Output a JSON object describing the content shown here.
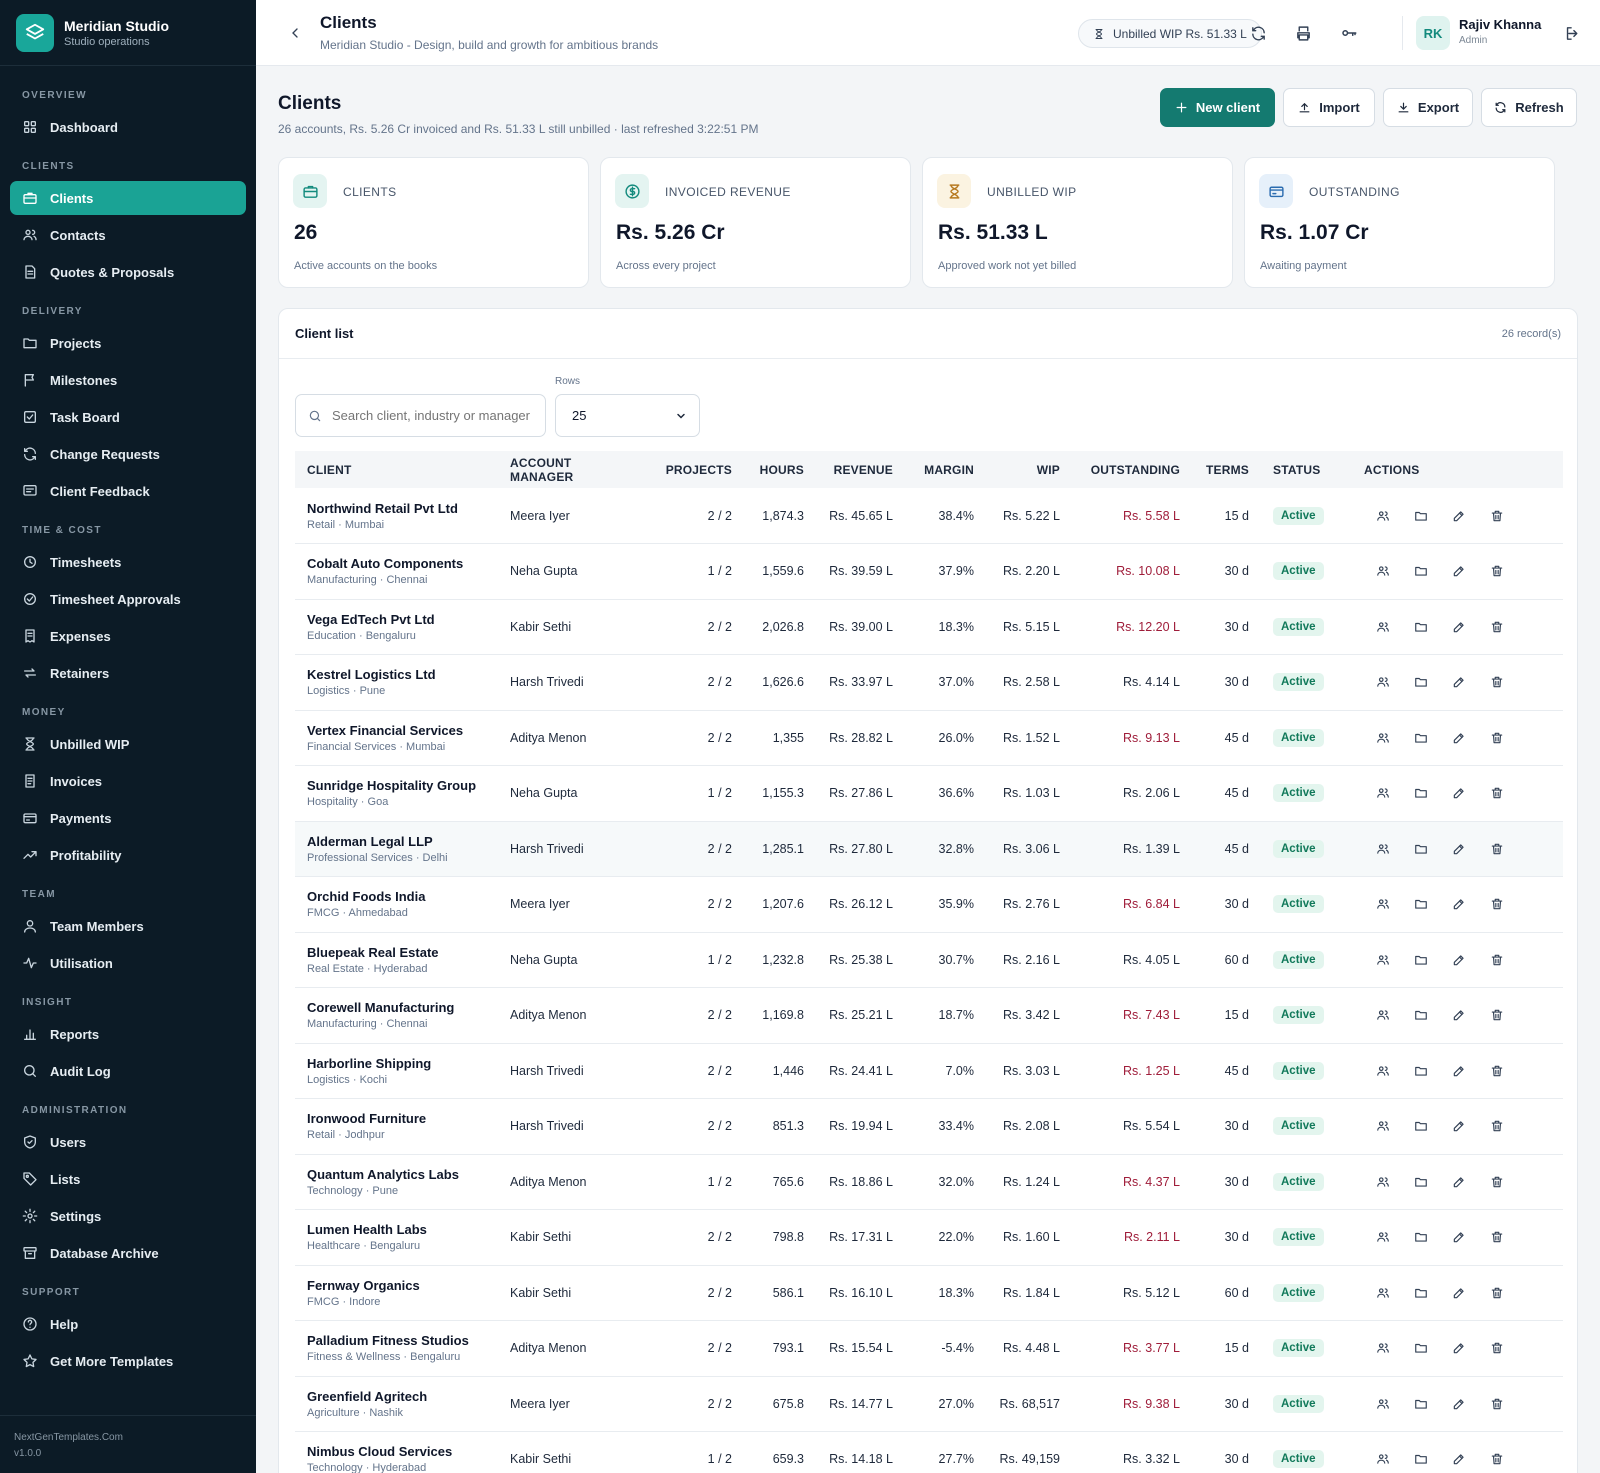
{
  "brand": {
    "name": "Meridian Studio",
    "subtitle": "Studio operations"
  },
  "sidebar": {
    "sections": [
      {
        "title": "OVERVIEW",
        "items": [
          {
            "label": "Dashboard",
            "icon": "dashboard-icon"
          }
        ]
      },
      {
        "title": "CLIENTS",
        "items": [
          {
            "label": "Clients",
            "icon": "briefcase-icon",
            "active": true
          },
          {
            "label": "Contacts",
            "icon": "contacts-icon"
          },
          {
            "label": "Quotes & Proposals",
            "icon": "document-icon"
          }
        ]
      },
      {
        "title": "DELIVERY",
        "items": [
          {
            "label": "Projects",
            "icon": "folder-icon"
          },
          {
            "label": "Milestones",
            "icon": "flag-icon"
          },
          {
            "label": "Task Board",
            "icon": "checkbox-icon"
          },
          {
            "label": "Change Requests",
            "icon": "refresh-icon"
          },
          {
            "label": "Client Feedback",
            "icon": "message-icon"
          }
        ]
      },
      {
        "title": "TIME & COST",
        "items": [
          {
            "label": "Timesheets",
            "icon": "clock-icon"
          },
          {
            "label": "Timesheet Approvals",
            "icon": "check-circle-icon"
          },
          {
            "label": "Expenses",
            "icon": "receipt-icon"
          },
          {
            "label": "Retainers",
            "icon": "repeat-icon"
          }
        ]
      },
      {
        "title": "MONEY",
        "items": [
          {
            "label": "Unbilled WIP",
            "icon": "hourglass-icon"
          },
          {
            "label": "Invoices",
            "icon": "invoice-icon"
          },
          {
            "label": "Payments",
            "icon": "card-icon"
          },
          {
            "label": "Profitability",
            "icon": "trend-icon"
          }
        ]
      },
      {
        "title": "TEAM",
        "items": [
          {
            "label": "Team Members",
            "icon": "user-icon"
          },
          {
            "label": "Utilisation",
            "icon": "pulse-icon"
          }
        ]
      },
      {
        "title": "INSIGHT",
        "items": [
          {
            "label": "Reports",
            "icon": "bar-chart-icon"
          },
          {
            "label": "Audit Log",
            "icon": "search-icon"
          }
        ]
      },
      {
        "title": "ADMINISTRATION",
        "items": [
          {
            "label": "Users",
            "icon": "shield-icon"
          },
          {
            "label": "Lists",
            "icon": "tag-icon"
          },
          {
            "label": "Settings",
            "icon": "gear-icon"
          },
          {
            "label": "Database Archive",
            "icon": "archive-icon"
          }
        ]
      },
      {
        "title": "SUPPORT",
        "items": [
          {
            "label": "Help",
            "icon": "help-icon"
          },
          {
            "label": "Get More Templates",
            "icon": "star-icon"
          }
        ]
      }
    ],
    "footer": {
      "site": "NextGenTemplates.Com",
      "version": "v1.0.0"
    }
  },
  "topbar": {
    "title": "Clients",
    "subtitle": "Meridian Studio - Design, build and growth for ambitious brands",
    "wip_pill": "Unbilled WIP Rs. 51.33 L",
    "user": {
      "initials": "RK",
      "name": "Rajiv Khanna",
      "role": "Admin"
    }
  },
  "page": {
    "title": "Clients",
    "subtitle": "26 accounts, Rs. 5.26 Cr invoiced and Rs. 51.33 L still unbilled · last refreshed 3:22:51 PM",
    "buttons": {
      "new_client": "New client",
      "import": "Import",
      "export": "Export",
      "refresh": "Refresh"
    }
  },
  "stats": [
    {
      "label": "CLIENTS",
      "value": "26",
      "note": "Active accounts on the books",
      "icon": "briefcase-icon",
      "color": "#138a7d",
      "bg": "#e4f4f1"
    },
    {
      "label": "INVOICED REVENUE",
      "value": "Rs. 5.26 Cr",
      "note": "Across every project",
      "icon": "coin-icon",
      "color": "#138a7d",
      "bg": "#e4f4f1"
    },
    {
      "label": "UNBILLED WIP",
      "value": "Rs. 51.33 L",
      "note": "Approved work not yet billed",
      "icon": "hourglass-icon",
      "color": "#b7791f",
      "bg": "#fbf3e1"
    },
    {
      "label": "OUTSTANDING",
      "value": "Rs. 1.07 Cr",
      "note": "Awaiting payment",
      "icon": "card-icon",
      "color": "#2b6cb0",
      "bg": "#e6f0fa"
    }
  ],
  "list": {
    "title": "Client list",
    "count": "26 record(s)",
    "search_placeholder": "Search client, industry or manager",
    "rows_label": "Rows",
    "rows_value": "25",
    "columns": [
      "CLIENT",
      "ACCOUNT MANAGER",
      "PROJECTS",
      "HOURS",
      "REVENUE",
      "MARGIN",
      "WIP",
      "OUTSTANDING",
      "TERMS",
      "STATUS",
      "ACTIONS"
    ],
    "rows": [
      {
        "name": "Northwind Retail Pvt Ltd",
        "meta": "Retail · Mumbai",
        "manager": "Meera Iyer",
        "projects": "2 / 2",
        "hours": "1,874.3",
        "revenue": "Rs. 45.65 L",
        "margin": "38.4%",
        "wip": "Rs. 5.22 L",
        "outstanding": "Rs. 5.58 L",
        "overdue": true,
        "terms": "15 d",
        "status": "Active"
      },
      {
        "name": "Cobalt Auto Components",
        "meta": "Manufacturing · Chennai",
        "manager": "Neha Gupta",
        "projects": "1 / 2",
        "hours": "1,559.6",
        "revenue": "Rs. 39.59 L",
        "margin": "37.9%",
        "wip": "Rs. 2.20 L",
        "outstanding": "Rs. 10.08 L",
        "overdue": true,
        "terms": "30 d",
        "status": "Active"
      },
      {
        "name": "Vega EdTech Pvt Ltd",
        "meta": "Education · Bengaluru",
        "manager": "Kabir Sethi",
        "projects": "2 / 2",
        "hours": "2,026.8",
        "revenue": "Rs. 39.00 L",
        "margin": "18.3%",
        "wip": "Rs. 5.15 L",
        "outstanding": "Rs. 12.20 L",
        "overdue": true,
        "terms": "30 d",
        "status": "Active"
      },
      {
        "name": "Kestrel Logistics Ltd",
        "meta": "Logistics · Pune",
        "manager": "Harsh Trivedi",
        "projects": "2 / 2",
        "hours": "1,626.6",
        "revenue": "Rs. 33.97 L",
        "margin": "37.0%",
        "wip": "Rs. 2.58 L",
        "outstanding": "Rs. 4.14 L",
        "overdue": false,
        "terms": "30 d",
        "status": "Active"
      },
      {
        "name": "Vertex Financial Services",
        "meta": "Financial Services · Mumbai",
        "manager": "Aditya Menon",
        "projects": "2 / 2",
        "hours": "1,355",
        "revenue": "Rs. 28.82 L",
        "margin": "26.0%",
        "wip": "Rs. 1.52 L",
        "outstanding": "Rs. 9.13 L",
        "overdue": true,
        "terms": "45 d",
        "status": "Active"
      },
      {
        "name": "Sunridge Hospitality Group",
        "meta": "Hospitality · Goa",
        "manager": "Neha Gupta",
        "projects": "1 / 2",
        "hours": "1,155.3",
        "revenue": "Rs. 27.86 L",
        "margin": "36.6%",
        "wip": "Rs. 1.03 L",
        "outstanding": "Rs. 2.06 L",
        "overdue": false,
        "terms": "45 d",
        "status": "Active"
      },
      {
        "name": "Alderman Legal LLP",
        "meta": "Professional Services · Delhi",
        "manager": "Harsh Trivedi",
        "projects": "2 / 2",
        "hours": "1,285.1",
        "revenue": "Rs. 27.80 L",
        "margin": "32.8%",
        "wip": "Rs. 3.06 L",
        "outstanding": "Rs. 1.39 L",
        "overdue": false,
        "terms": "45 d",
        "status": "Active",
        "highlight": true
      },
      {
        "name": "Orchid Foods India",
        "meta": "FMCG · Ahmedabad",
        "manager": "Meera Iyer",
        "projects": "2 / 2",
        "hours": "1,207.6",
        "revenue": "Rs. 26.12 L",
        "margin": "35.9%",
        "wip": "Rs. 2.76 L",
        "outstanding": "Rs. 6.84 L",
        "overdue": true,
        "terms": "30 d",
        "status": "Active"
      },
      {
        "name": "Bluepeak Real Estate",
        "meta": "Real Estate · Hyderabad",
        "manager": "Neha Gupta",
        "projects": "1 / 2",
        "hours": "1,232.8",
        "revenue": "Rs. 25.38 L",
        "margin": "30.7%",
        "wip": "Rs. 2.16 L",
        "outstanding": "Rs. 4.05 L",
        "overdue": false,
        "terms": "60 d",
        "status": "Active"
      },
      {
        "name": "Corewell Manufacturing",
        "meta": "Manufacturing · Chennai",
        "manager": "Aditya Menon",
        "projects": "2 / 2",
        "hours": "1,169.8",
        "revenue": "Rs. 25.21 L",
        "margin": "18.7%",
        "wip": "Rs. 3.42 L",
        "outstanding": "Rs. 7.43 L",
        "overdue": true,
        "terms": "15 d",
        "status": "Active"
      },
      {
        "name": "Harborline Shipping",
        "meta": "Logistics · Kochi",
        "manager": "Harsh Trivedi",
        "projects": "2 / 2",
        "hours": "1,446",
        "revenue": "Rs. 24.41 L",
        "margin": "7.0%",
        "wip": "Rs. 3.03 L",
        "outstanding": "Rs. 1.25 L",
        "overdue": true,
        "terms": "45 d",
        "status": "Active"
      },
      {
        "name": "Ironwood Furniture",
        "meta": "Retail · Jodhpur",
        "manager": "Harsh Trivedi",
        "projects": "2 / 2",
        "hours": "851.3",
        "revenue": "Rs. 19.94 L",
        "margin": "33.4%",
        "wip": "Rs. 2.08 L",
        "outstanding": "Rs. 5.54 L",
        "overdue": false,
        "terms": "30 d",
        "status": "Active"
      },
      {
        "name": "Quantum Analytics Labs",
        "meta": "Technology · Pune",
        "manager": "Aditya Menon",
        "projects": "1 / 2",
        "hours": "765.6",
        "revenue": "Rs. 18.86 L",
        "margin": "32.0%",
        "wip": "Rs. 1.24 L",
        "outstanding": "Rs. 4.37 L",
        "overdue": true,
        "terms": "30 d",
        "status": "Active"
      },
      {
        "name": "Lumen Health Labs",
        "meta": "Healthcare · Bengaluru",
        "manager": "Kabir Sethi",
        "projects": "2 / 2",
        "hours": "798.8",
        "revenue": "Rs. 17.31 L",
        "margin": "22.0%",
        "wip": "Rs. 1.60 L",
        "outstanding": "Rs. 2.11 L",
        "overdue": true,
        "terms": "30 d",
        "status": "Active"
      },
      {
        "name": "Fernway Organics",
        "meta": "FMCG · Indore",
        "manager": "Kabir Sethi",
        "projects": "2 / 2",
        "hours": "586.1",
        "revenue": "Rs. 16.10 L",
        "margin": "18.3%",
        "wip": "Rs. 1.84 L",
        "outstanding": "Rs. 5.12 L",
        "overdue": false,
        "terms": "60 d",
        "status": "Active"
      },
      {
        "name": "Palladium Fitness Studios",
        "meta": "Fitness & Wellness · Bengaluru",
        "manager": "Aditya Menon",
        "projects": "2 / 2",
        "hours": "793.1",
        "revenue": "Rs. 15.54 L",
        "margin": "-5.4%",
        "wip": "Rs. 4.48 L",
        "outstanding": "Rs. 3.77 L",
        "overdue": true,
        "terms": "15 d",
        "status": "Active"
      },
      {
        "name": "Greenfield Agritech",
        "meta": "Agriculture · Nashik",
        "manager": "Meera Iyer",
        "projects": "2 / 2",
        "hours": "675.8",
        "revenue": "Rs. 14.77 L",
        "margin": "27.0%",
        "wip": "Rs. 68,517",
        "outstanding": "Rs. 9.38 L",
        "overdue": true,
        "terms": "30 d",
        "status": "Active"
      },
      {
        "name": "Nimbus Cloud Services",
        "meta": "Technology · Hyderabad",
        "manager": "Kabir Sethi",
        "projects": "1 / 2",
        "hours": "659.3",
        "revenue": "Rs. 14.18 L",
        "margin": "27.7%",
        "wip": "Rs. 49,159",
        "outstanding": "Rs. 3.32 L",
        "overdue": false,
        "terms": "30 d",
        "status": "Active"
      }
    ]
  },
  "colors": {
    "accent": "#147a70",
    "sidebar_bg": "#0c1b26",
    "overdue": "#9f1d3a",
    "active_badge": "#e3f5ee"
  }
}
